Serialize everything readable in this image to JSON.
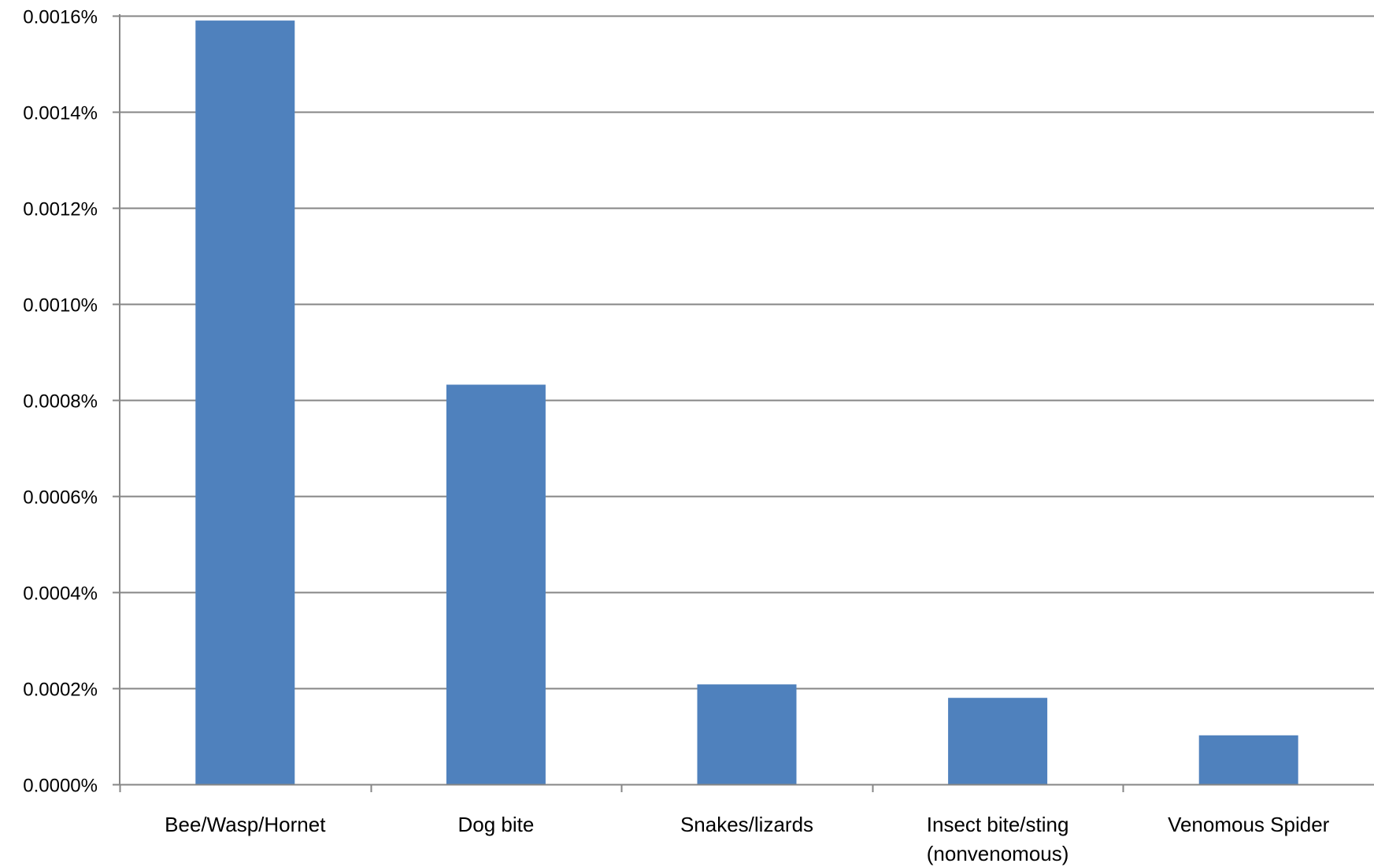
{
  "chart_data": {
    "type": "bar",
    "title": "",
    "xlabel": "",
    "ylabel": "",
    "categories": [
      [
        "Bee/Wasp/Hornet"
      ],
      [
        "Dog bite"
      ],
      [
        "Snakes/lizards"
      ],
      [
        "Insect bite/sting",
        "(nonvenomous)"
      ],
      [
        "Venomous Spider"
      ]
    ],
    "values": [
      0.00159,
      0.000832,
      0.000208,
      0.00018,
      0.000102
    ],
    "value_unit": "%",
    "ylim": [
      0,
      0.0016
    ],
    "yticks": [
      0,
      0.0002,
      0.0004,
      0.0006,
      0.0008,
      0.001,
      0.0012,
      0.0014,
      0.0016
    ],
    "ytick_labels": [
      "0.0000%",
      "0.0002%",
      "0.0004%",
      "0.0006%",
      "0.0008%",
      "0.0010%",
      "0.0012%",
      "0.0014%",
      "0.0016%"
    ],
    "grid": true,
    "legend": "none",
    "bar_color": "#4F81BD",
    "grid_color": "#868686",
    "axis_color": "#868686"
  }
}
